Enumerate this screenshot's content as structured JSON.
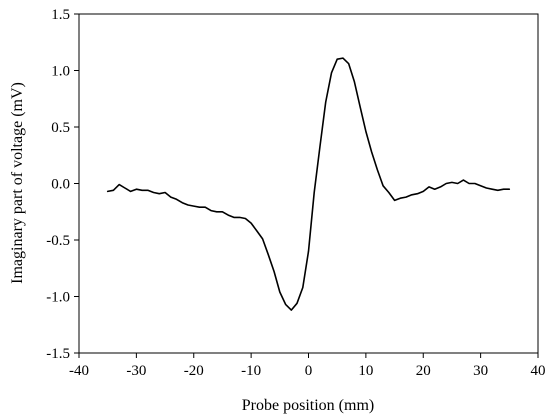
{
  "chart_data": {
    "type": "line",
    "title": "",
    "xlabel": "Probe position (mm)",
    "ylabel": "Imaginary part of voltage (mV)",
    "xlim": [
      -40,
      40
    ],
    "ylim": [
      -1.5,
      1.5
    ],
    "xticks": [
      -40,
      -30,
      -20,
      -10,
      0,
      10,
      20,
      30,
      40
    ],
    "xtick_labels": [
      "-40",
      "-30",
      "-20",
      "-10",
      "0",
      "10",
      "20",
      "30",
      "40"
    ],
    "yticks": [
      -1.5,
      -1.0,
      -0.5,
      0.0,
      0.5,
      1.0,
      1.5
    ],
    "ytick_labels": [
      "-1.5",
      "-1.0",
      "-0.5",
      "0.0",
      "0.5",
      "1.0",
      "1.5"
    ],
    "grid": false,
    "legend": "none",
    "line_color": "#000000",
    "series": [
      {
        "x": [
          -35,
          -34,
          -33,
          -32,
          -31,
          -30,
          -29,
          -28,
          -27,
          -26,
          -25,
          -24,
          -23,
          -22,
          -21,
          -20,
          -19,
          -18,
          -17,
          -16,
          -15,
          -14,
          -13,
          -12,
          -11,
          -10,
          -9,
          -8,
          -7,
          -6,
          -5,
          -4,
          -3,
          -2,
          -1,
          0,
          1,
          2,
          3,
          4,
          5,
          6,
          7,
          8,
          9,
          10,
          11,
          12,
          13,
          14,
          15,
          16,
          17,
          18,
          19,
          20,
          21,
          22,
          23,
          24,
          25,
          26,
          27,
          28,
          29,
          30,
          31,
          32,
          33,
          34,
          35
        ],
        "y": [
          -0.07,
          -0.06,
          -0.01,
          -0.04,
          -0.07,
          -0.05,
          -0.06,
          -0.06,
          -0.08,
          -0.09,
          -0.08,
          -0.12,
          -0.14,
          -0.17,
          -0.19,
          -0.2,
          -0.21,
          -0.21,
          -0.24,
          -0.25,
          -0.25,
          -0.28,
          -0.3,
          -0.3,
          -0.31,
          -0.35,
          -0.42,
          -0.49,
          -0.63,
          -0.78,
          -0.96,
          -1.07,
          -1.12,
          -1.06,
          -0.92,
          -0.6,
          -0.08,
          0.33,
          0.72,
          0.98,
          1.1,
          1.11,
          1.06,
          0.9,
          0.68,
          0.46,
          0.28,
          0.12,
          -0.02,
          -0.08,
          -0.15,
          -0.13,
          -0.12,
          -0.1,
          -0.09,
          -0.07,
          -0.03,
          -0.05,
          -0.03,
          0.0,
          0.01,
          0.0,
          0.03,
          0.0,
          0.0,
          -0.02,
          -0.04,
          -0.05,
          -0.06,
          -0.05,
          -0.05
        ]
      }
    ]
  }
}
